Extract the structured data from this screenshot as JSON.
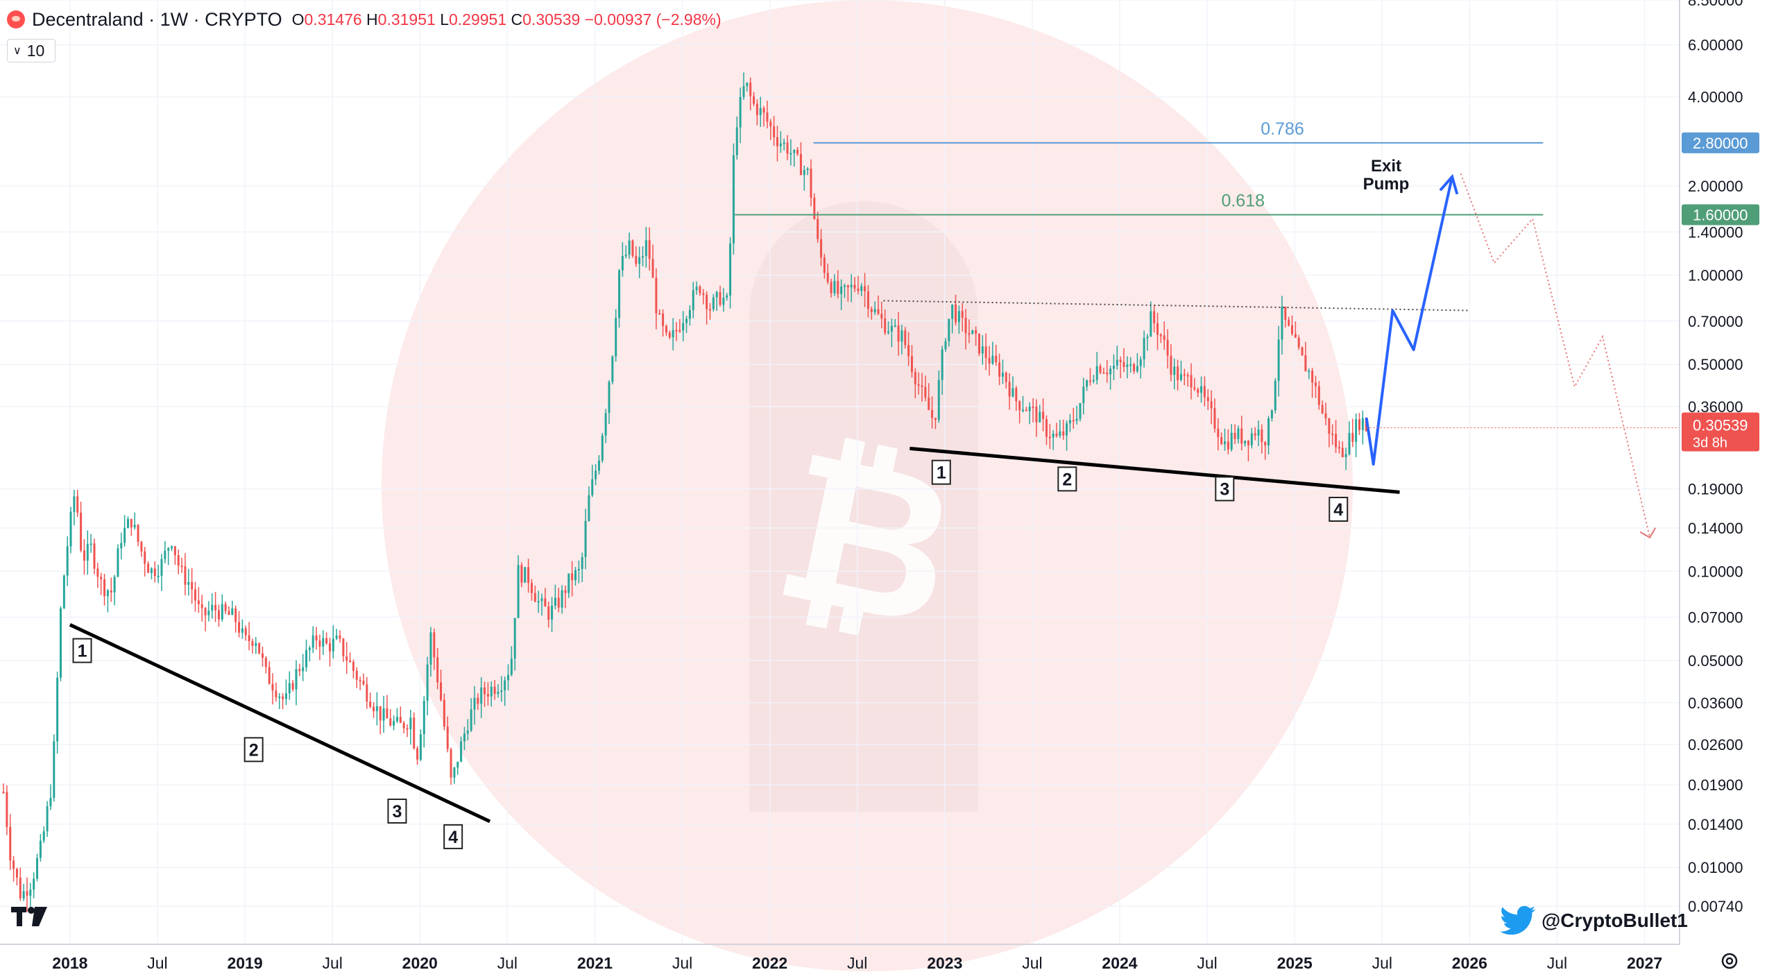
{
  "header": {
    "symbol": "Decentraland · 1W · CRYPTO",
    "open_label": "O",
    "open": "0.31476",
    "high_label": "H",
    "high": "0.31951",
    "low_label": "L",
    "low": "0.29951",
    "close_label": "C",
    "close": "0.30539",
    "change": "−0.00937 (−2.98%)",
    "interval": "10"
  },
  "credit": {
    "handle": "@CryptoBullet1",
    "icon": "twitter-bird-icon"
  },
  "colors": {
    "up": "#26a69a",
    "down": "#ef5350",
    "fib786": "#5b9bd5",
    "fib618": "#4f9e78",
    "projection": "#2962ff",
    "background_circle": "#fde9e9"
  },
  "chart_data": {
    "type": "candlestick",
    "title": "Decentraland · 1W · CRYPTO",
    "yscale": "log",
    "ylim": [
      0.0055,
      8.5
    ],
    "xlim": [
      2017.6,
      2027.2
    ],
    "y_tick_labels": [
      "8.50000",
      "6.00000",
      "4.00000",
      "2.00000",
      "1.40000",
      "1.00000",
      "0.70000",
      "0.50000",
      "0.36000",
      "0.19000",
      "0.14000",
      "0.10000",
      "0.07000",
      "0.05000",
      "0.03600",
      "0.02600",
      "0.01900",
      "0.01400",
      "0.01000",
      "0.00740"
    ],
    "x_ticks": [
      {
        "label": "2018",
        "t": 2018.0,
        "bold": true
      },
      {
        "label": "Jul",
        "t": 2018.5,
        "bold": false
      },
      {
        "label": "2019",
        "t": 2019.0,
        "bold": true
      },
      {
        "label": "Jul",
        "t": 2019.5,
        "bold": false
      },
      {
        "label": "2020",
        "t": 2020.0,
        "bold": true
      },
      {
        "label": "Jul",
        "t": 2020.5,
        "bold": false
      },
      {
        "label": "2021",
        "t": 2021.0,
        "bold": true
      },
      {
        "label": "Jul",
        "t": 2021.5,
        "bold": false
      },
      {
        "label": "2022",
        "t": 2022.0,
        "bold": true
      },
      {
        "label": "Jul",
        "t": 2022.5,
        "bold": false
      },
      {
        "label": "2023",
        "t": 2023.0,
        "bold": true
      },
      {
        "label": "Jul",
        "t": 2023.5,
        "bold": false
      },
      {
        "label": "2024",
        "t": 2024.0,
        "bold": true
      },
      {
        "label": "Jul",
        "t": 2024.5,
        "bold": false
      },
      {
        "label": "2025",
        "t": 2025.0,
        "bold": true
      },
      {
        "label": "Jul",
        "t": 2025.5,
        "bold": false
      },
      {
        "label": "2026",
        "t": 2026.0,
        "bold": true
      },
      {
        "label": "Jul",
        "t": 2026.5,
        "bold": false
      },
      {
        "label": "2027",
        "t": 2027.0,
        "bold": true
      }
    ],
    "price_path": [
      [
        2017.62,
        0.018
      ],
      [
        2017.66,
        0.011
      ],
      [
        2017.72,
        0.008
      ],
      [
        2017.78,
        0.009
      ],
      [
        2017.84,
        0.012
      ],
      [
        2017.9,
        0.02
      ],
      [
        2017.95,
        0.08
      ],
      [
        2017.99,
        0.13
      ],
      [
        2018.03,
        0.19
      ],
      [
        2018.07,
        0.11
      ],
      [
        2018.12,
        0.12
      ],
      [
        2018.18,
        0.09
      ],
      [
        2018.24,
        0.085
      ],
      [
        2018.29,
        0.13
      ],
      [
        2018.35,
        0.15
      ],
      [
        2018.4,
        0.12
      ],
      [
        2018.46,
        0.1
      ],
      [
        2018.52,
        0.105
      ],
      [
        2018.58,
        0.13
      ],
      [
        2018.63,
        0.1
      ],
      [
        2018.69,
        0.09
      ],
      [
        2018.75,
        0.07
      ],
      [
        2018.82,
        0.075
      ],
      [
        2018.88,
        0.072
      ],
      [
        2018.94,
        0.07
      ],
      [
        2019.0,
        0.058
      ],
      [
        2019.06,
        0.06
      ],
      [
        2019.12,
        0.045
      ],
      [
        2019.18,
        0.04
      ],
      [
        2019.23,
        0.036
      ],
      [
        2019.29,
        0.045
      ],
      [
        2019.35,
        0.052
      ],
      [
        2019.41,
        0.06
      ],
      [
        2019.47,
        0.056
      ],
      [
        2019.53,
        0.058
      ],
      [
        2019.59,
        0.05
      ],
      [
        2019.65,
        0.043
      ],
      [
        2019.71,
        0.038
      ],
      [
        2019.77,
        0.033
      ],
      [
        2019.83,
        0.031
      ],
      [
        2019.89,
        0.03
      ],
      [
        2019.95,
        0.032
      ],
      [
        2019.98,
        0.023
      ],
      [
        2020.02,
        0.035
      ],
      [
        2020.06,
        0.062
      ],
      [
        2020.12,
        0.037
      ],
      [
        2020.18,
        0.019
      ],
      [
        2020.22,
        0.024
      ],
      [
        2020.28,
        0.032
      ],
      [
        2020.34,
        0.038
      ],
      [
        2020.4,
        0.04
      ],
      [
        2020.46,
        0.042
      ],
      [
        2020.52,
        0.048
      ],
      [
        2020.56,
        0.1
      ],
      [
        2020.62,
        0.095
      ],
      [
        2020.68,
        0.078
      ],
      [
        2020.74,
        0.072
      ],
      [
        2020.8,
        0.08
      ],
      [
        2020.86,
        0.095
      ],
      [
        2020.92,
        0.1
      ],
      [
        2020.96,
        0.17
      ],
      [
        2021.02,
        0.24
      ],
      [
        2021.06,
        0.35
      ],
      [
        2021.1,
        0.55
      ],
      [
        2021.14,
        1.05
      ],
      [
        2021.2,
        1.25
      ],
      [
        2021.24,
        1.05
      ],
      [
        2021.3,
        1.3
      ],
      [
        2021.36,
        0.72
      ],
      [
        2021.42,
        0.58
      ],
      [
        2021.48,
        0.68
      ],
      [
        2021.54,
        0.8
      ],
      [
        2021.6,
        0.92
      ],
      [
        2021.66,
        0.78
      ],
      [
        2021.72,
        0.85
      ],
      [
        2021.76,
        0.8
      ],
      [
        2021.8,
        3.1
      ],
      [
        2021.86,
        4.5
      ],
      [
        2021.9,
        3.8
      ],
      [
        2021.96,
        3.5
      ],
      [
        2022.04,
        2.9
      ],
      [
        2022.1,
        2.7
      ],
      [
        2022.16,
        2.4
      ],
      [
        2022.22,
        2.2
      ],
      [
        2022.28,
        1.2
      ],
      [
        2022.34,
        0.95
      ],
      [
        2022.4,
        0.85
      ],
      [
        2022.46,
        0.9
      ],
      [
        2022.52,
        0.95
      ],
      [
        2022.58,
        0.78
      ],
      [
        2022.64,
        0.7
      ],
      [
        2022.7,
        0.65
      ],
      [
        2022.76,
        0.62
      ],
      [
        2022.82,
        0.48
      ],
      [
        2022.88,
        0.38
      ],
      [
        2022.94,
        0.32
      ],
      [
        2023.0,
        0.62
      ],
      [
        2023.04,
        0.78
      ],
      [
        2023.1,
        0.68
      ],
      [
        2023.16,
        0.62
      ],
      [
        2023.22,
        0.55
      ],
      [
        2023.28,
        0.5
      ],
      [
        2023.34,
        0.46
      ],
      [
        2023.4,
        0.38
      ],
      [
        2023.46,
        0.36
      ],
      [
        2023.52,
        0.34
      ],
      [
        2023.58,
        0.3
      ],
      [
        2023.64,
        0.28
      ],
      [
        2023.7,
        0.3
      ],
      [
        2023.76,
        0.35
      ],
      [
        2023.82,
        0.45
      ],
      [
        2023.88,
        0.5
      ],
      [
        2023.94,
        0.48
      ],
      [
        2024.0,
        0.5
      ],
      [
        2024.06,
        0.48
      ],
      [
        2024.12,
        0.55
      ],
      [
        2024.18,
        0.72
      ],
      [
        2024.24,
        0.62
      ],
      [
        2024.3,
        0.48
      ],
      [
        2024.36,
        0.44
      ],
      [
        2024.42,
        0.45
      ],
      [
        2024.48,
        0.38
      ],
      [
        2024.54,
        0.32
      ],
      [
        2024.6,
        0.27
      ],
      [
        2024.66,
        0.29
      ],
      [
        2024.72,
        0.28
      ],
      [
        2024.78,
        0.3
      ],
      [
        2024.84,
        0.28
      ],
      [
        2024.88,
        0.4
      ],
      [
        2024.92,
        0.75
      ],
      [
        2024.98,
        0.62
      ],
      [
        2025.04,
        0.52
      ],
      [
        2025.1,
        0.45
      ],
      [
        2025.16,
        0.34
      ],
      [
        2025.22,
        0.28
      ],
      [
        2025.26,
        0.25
      ],
      [
        2025.3,
        0.27
      ],
      [
        2025.34,
        0.3
      ],
      [
        2025.38,
        0.33
      ],
      [
        2025.41,
        0.305
      ]
    ],
    "swing_points": [
      {
        "label": "1",
        "t": 2018.07,
        "price": 0.054
      },
      {
        "label": "2",
        "t": 2019.05,
        "price": 0.025
      },
      {
        "label": "3",
        "t": 2019.87,
        "price": 0.0155
      },
      {
        "label": "4",
        "t": 2020.19,
        "price": 0.0127
      },
      {
        "label": "1",
        "t": 2022.98,
        "price": 0.216
      },
      {
        "label": "2",
        "t": 2023.7,
        "price": 0.205
      },
      {
        "label": "3",
        "t": 2024.6,
        "price": 0.19
      },
      {
        "label": "4",
        "t": 2025.25,
        "price": 0.162
      }
    ],
    "trendlines": [
      {
        "name": "support-2018-2020",
        "from": [
          2018.0,
          0.066
        ],
        "to": [
          2020.4,
          0.0143
        ]
      },
      {
        "name": "support-2022-2025",
        "from": [
          2022.8,
          0.26
        ],
        "to": [
          2025.6,
          0.185
        ]
      }
    ],
    "resistance_dotted": {
      "from": [
        2022.65,
        0.82
      ],
      "to": [
        2026.0,
        0.76
      ]
    },
    "fib_levels": [
      {
        "label": "0.786",
        "price": 2.8,
        "tag": "2.80000",
        "from_t": 2022.25,
        "to_t": 2026.42
      },
      {
        "label": "0.618",
        "price": 1.6,
        "tag": "1.60000",
        "from_t": 2021.8,
        "to_t": 2026.42
      }
    ],
    "projection_path": [
      [
        2025.41,
        0.33
      ],
      [
        2025.45,
        0.23
      ],
      [
        2025.56,
        0.76
      ],
      [
        2025.68,
        0.56
      ],
      [
        2025.9,
        2.15
      ]
    ],
    "dotted_bear_path": [
      [
        2025.95,
        2.2
      ],
      [
        2026.14,
        1.1
      ],
      [
        2026.36,
        1.55
      ],
      [
        2026.6,
        0.42
      ],
      [
        2026.76,
        0.62
      ],
      [
        2027.03,
        0.13
      ]
    ],
    "annotation": "Exit Pump",
    "last_price": {
      "value": "0.30539",
      "countdown": "3d 8h"
    }
  }
}
